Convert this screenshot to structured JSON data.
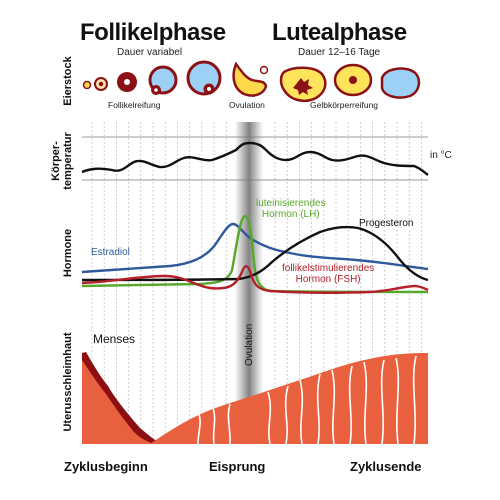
{
  "phases": {
    "follicular": {
      "title": "Follikelphase",
      "duration": "Dauer variabel"
    },
    "luteal": {
      "title": "Lutealphase",
      "duration": "Dauer 12–16 Tage"
    }
  },
  "ovary": {
    "row_label": "Eierstock",
    "labels": {
      "follicle_maturation": "Follikelreifung",
      "ovulation": "Ovulation",
      "corpus_luteum": "Gelbkörperreifung"
    }
  },
  "temperature": {
    "row_label_line1": "Körper-",
    "row_label_line2": "temperatur",
    "unit": "in °C"
  },
  "hormones": {
    "row_label": "Hormone",
    "estradiol": {
      "label": "Estradiol",
      "color": "#2e5a9c"
    },
    "lh": {
      "label_line1": "luteinisierendes",
      "label_line2": "Hormon (LH)",
      "color": "#56a82a"
    },
    "progesterone": {
      "label": "Progesteron",
      "color": "#111111"
    },
    "fsh": {
      "label_line1": "follikelstimulierendes",
      "label_line2": "Hormon (FSH)",
      "color": "#b3202a"
    }
  },
  "endometrium": {
    "row_label": "Uterusschleimhaut",
    "menses": "Menses",
    "color": "#e8603e"
  },
  "ovulation_band_label": "Ovulation",
  "x_axis": {
    "start": "Zyklusbeginn",
    "middle": "Eisprung",
    "end": "Zyklusende"
  }
}
